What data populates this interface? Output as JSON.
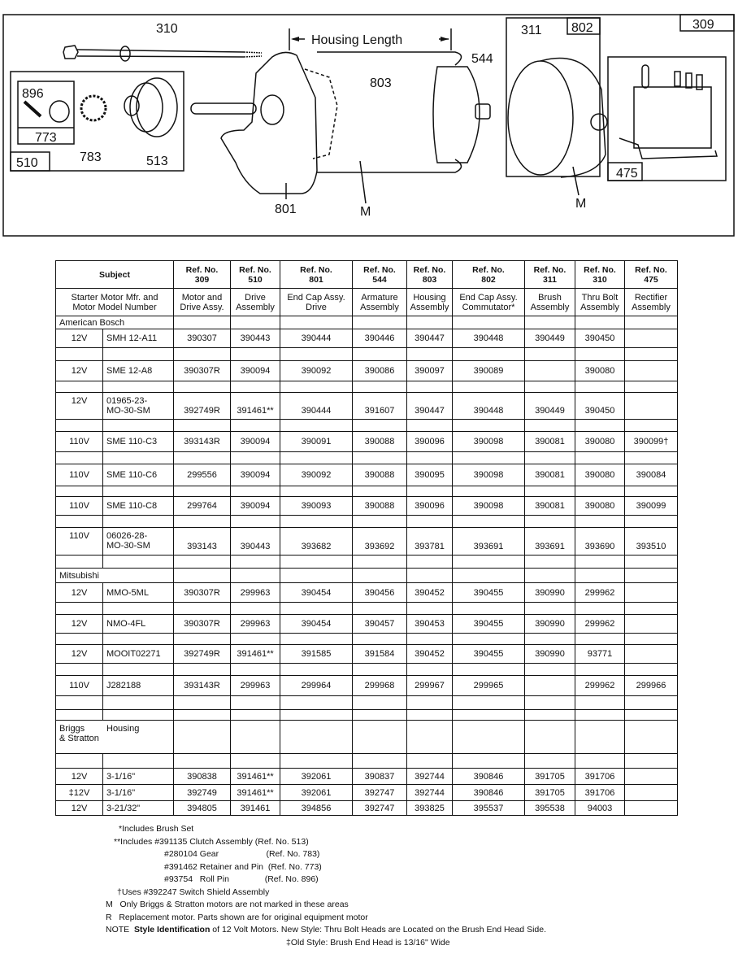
{
  "diagram": {
    "callouts": [
      "310",
      "896",
      "773",
      "510",
      "783",
      "513",
      "801",
      "M",
      "803",
      "544",
      "311",
      "802",
      "309",
      "475",
      "M"
    ],
    "housing_length_label": "Housing Length"
  },
  "table": {
    "subject_label": "Subject",
    "ref_numbers": [
      {
        "ref": "Ref. No.",
        "num": "309",
        "desc": [
          "Motor and",
          "Drive Assy."
        ]
      },
      {
        "ref": "Ref. No.",
        "num": "510",
        "desc": [
          "Drive",
          "Assembly"
        ]
      },
      {
        "ref": "Ref. No.",
        "num": "801",
        "desc": [
          "End Cap Assy.",
          "Drive"
        ]
      },
      {
        "ref": "Ref. No.",
        "num": "544",
        "desc": [
          "Armature",
          "Assembly"
        ]
      },
      {
        "ref": "Ref. No.",
        "num": "803",
        "desc": [
          "Housing",
          "Assembly"
        ]
      },
      {
        "ref": "Ref. No.",
        "num": "802",
        "desc": [
          "End Cap Assy.",
          "Commutator*"
        ]
      },
      {
        "ref": "Ref. No.",
        "num": "311",
        "desc": [
          "Brush",
          "Assembly"
        ]
      },
      {
        "ref": "Ref. No.",
        "num": "310",
        "desc": [
          "Thru Bolt",
          "Assembly"
        ]
      },
      {
        "ref": "Ref. No.",
        "num": "475",
        "desc": [
          "Rectifier",
          "Assembly"
        ]
      }
    ],
    "subject_desc": [
      "Starter Motor Mfr. and",
      "Motor Model Number"
    ],
    "rows": [
      {
        "type": "group",
        "label": "American Bosch"
      },
      {
        "type": "data",
        "volt": "12V",
        "model": [
          "SMH 12-A11"
        ],
        "values": [
          "390307",
          "390443",
          "390444",
          "390446",
          "390447",
          "390448",
          "390449",
          "390450",
          ""
        ]
      },
      {
        "type": "blank"
      },
      {
        "type": "data",
        "volt": "12V",
        "model": [
          "SME 12-A8"
        ],
        "values": [
          "390307R",
          "390094",
          "390092",
          "390086",
          "390097",
          "390089",
          "",
          "390080",
          ""
        ]
      },
      {
        "type": "blank"
      },
      {
        "type": "data",
        "volt": "12V",
        "model": [
          "01965-23-",
          "MO-30-SM"
        ],
        "values": [
          "392749R",
          "391461**",
          "390444",
          "391607",
          "390447",
          "390448",
          "390449",
          "390450",
          ""
        ]
      },
      {
        "type": "blank"
      },
      {
        "type": "data",
        "volt": "110V",
        "model": [
          "SME 110-C3"
        ],
        "values": [
          "393143R",
          "390094",
          "390091",
          "390088",
          "390096",
          "390098",
          "390081",
          "390080",
          "390099†"
        ]
      },
      {
        "type": "blank"
      },
      {
        "type": "data",
        "volt": "110V",
        "model": [
          "SME 110-C6"
        ],
        "values": [
          "299556",
          "390094",
          "390092",
          "390088",
          "390095",
          "390098",
          "390081",
          "390080",
          "390084"
        ]
      },
      {
        "type": "blank"
      },
      {
        "type": "data",
        "volt": "110V",
        "model": [
          "SME 110-C8"
        ],
        "values": [
          "299764",
          "390094",
          "390093",
          "390088",
          "390096",
          "390098",
          "390081",
          "390080",
          "390099"
        ]
      },
      {
        "type": "blank"
      },
      {
        "type": "data",
        "volt": "110V",
        "model": [
          "06026-28-",
          "MO-30-SM"
        ],
        "values": [
          "393143",
          "390443",
          "393682",
          "393692",
          "393781",
          "393691",
          "393691",
          "393690",
          "393510"
        ]
      },
      {
        "type": "blank"
      },
      {
        "type": "group",
        "label": "Mitsubishi"
      },
      {
        "type": "data",
        "volt": "12V",
        "model": [
          "MMO-5ML"
        ],
        "values": [
          "390307R",
          "299963",
          "390454",
          "390456",
          "390452",
          "390455",
          "390990",
          "299962",
          ""
        ]
      },
      {
        "type": "blank"
      },
      {
        "type": "data",
        "volt": "12V",
        "model": [
          "NMO-4FL"
        ],
        "values": [
          "390307R",
          "299963",
          "390454",
          "390457",
          "390453",
          "390455",
          "390990",
          "299962",
          ""
        ]
      },
      {
        "type": "blank"
      },
      {
        "type": "data",
        "volt": "12V",
        "model": [
          "MOOIT02271"
        ],
        "values": [
          "392749R",
          "391461**",
          "391585",
          "391584",
          "390452",
          "390455",
          "390990",
          "93771",
          ""
        ]
      },
      {
        "type": "blank"
      },
      {
        "type": "data",
        "volt": "110V",
        "model": [
          "J282188"
        ],
        "values": [
          "393143R",
          "299963",
          "299964",
          "299968",
          "299967",
          "299965",
          "",
          "299962",
          "299966"
        ]
      },
      {
        "type": "blank"
      },
      {
        "type": "blank"
      },
      {
        "type": "group2",
        "label": [
          "Briggs",
          "& Stratton"
        ],
        "sublabel": "Housing"
      },
      {
        "type": "blank"
      },
      {
        "type": "data",
        "volt": "12V",
        "model": [
          "3-1/16\""
        ],
        "values": [
          "390838",
          "391461**",
          "392061",
          "390837",
          "392744",
          "390846",
          "391705",
          "391706",
          ""
        ]
      },
      {
        "type": "data",
        "volt": "‡12V",
        "model": [
          "3-1/16\""
        ],
        "values": [
          "392749",
          "391461**",
          "392061",
          "392747",
          "392744",
          "390846",
          "391705",
          "391706",
          ""
        ]
      },
      {
        "type": "data",
        "volt": "12V",
        "model": [
          "3-21/32\""
        ],
        "values": [
          "394805",
          "391461",
          "394856",
          "392747",
          "393825",
          "395537",
          "395538",
          "94003",
          ""
        ]
      }
    ]
  },
  "notes": {
    "brush_set": "*Includes Brush Set",
    "includes_header": "**Includes #391135 Clutch Assembly (Ref. No. 513)",
    "includes_items": [
      "#280104 Gear                    (Ref. No. 783)",
      "#391462 Retainer and Pin  (Ref. No. 773)",
      "#93754   Roll Pin               (Ref. No. 896)"
    ],
    "switch_shield": "†Uses #392247 Switch Shield Assembly",
    "m_note": "M   Only Briggs & Stratton motors are not marked in these areas",
    "r_note": "R   Replacement motor. Parts shown are for original equipment motor",
    "note_prefix": "NOTE  ",
    "note_bold": "Style Identification",
    "note_rest": " of 12 Volt Motors. New Style: Thru Bolt Heads are Located on the Brush End Head Side.",
    "note_old": "‡Old Style: Brush End Head is 13/16\" Wide"
  }
}
